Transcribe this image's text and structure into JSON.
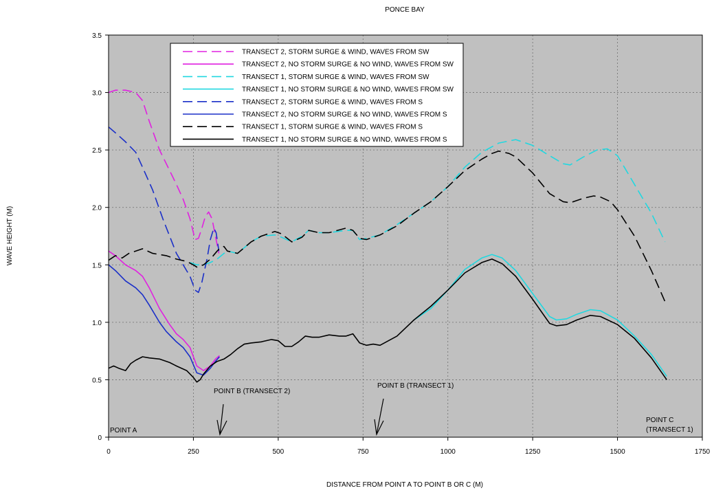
{
  "chart_data": {
    "type": "line",
    "title": "PONCE BAY",
    "xlabel": "DISTANCE FROM POINT A TO POINT B OR C (M)",
    "ylabel": "WAVE HEIGHT (M)",
    "xlim": [
      0,
      1750
    ],
    "ylim": [
      0,
      3.5
    ],
    "x_ticks": [
      0,
      250,
      500,
      750,
      1000,
      1250,
      1500,
      1750
    ],
    "y_ticks": [
      0,
      0.5,
      1.0,
      1.5,
      2.0,
      2.5,
      3.0,
      3.5
    ],
    "x_tick_labels": [
      "0",
      "250",
      "500",
      "750",
      "1000",
      "1250",
      "1500",
      "1750"
    ],
    "y_tick_labels": [
      "0",
      "0.5",
      "1.0",
      "1.5",
      "2.0",
      "2.5",
      "3.0",
      "3.5"
    ],
    "grid": true,
    "legend_position": "top-left",
    "series": [
      {
        "name": "TRANSECT 2, STORM SURGE & WIND, WAVES FROM SW",
        "color": "#e020e0",
        "style": "dashed",
        "x": [
          0,
          20,
          50,
          80,
          100,
          120,
          150,
          180,
          200,
          220,
          240,
          255,
          265,
          275,
          285,
          295,
          305,
          315,
          325
        ],
        "y": [
          3.0,
          3.02,
          3.02,
          3.0,
          2.93,
          2.75,
          2.5,
          2.32,
          2.2,
          2.07,
          1.9,
          1.72,
          1.73,
          1.82,
          1.92,
          1.96,
          1.9,
          1.75,
          1.6
        ]
      },
      {
        "name": "TRANSECT 2, NO STORM SURGE & NO WIND, WAVES FROM SW",
        "color": "#e020e0",
        "style": "solid",
        "x": [
          0,
          20,
          50,
          80,
          100,
          120,
          150,
          180,
          200,
          220,
          240,
          260,
          280,
          300,
          315,
          327
        ],
        "y": [
          1.62,
          1.58,
          1.5,
          1.45,
          1.4,
          1.3,
          1.12,
          0.98,
          0.9,
          0.85,
          0.78,
          0.62,
          0.58,
          0.62,
          0.68,
          0.71
        ]
      },
      {
        "name": "TRANSECT 1, STORM SURGE & WIND, WAVES FROM SW",
        "color": "#20d8e0",
        "style": "dashed",
        "x": [
          240,
          260,
          280,
          300,
          320,
          340,
          350,
          380,
          420,
          450,
          490,
          510,
          540,
          570,
          590,
          620,
          650,
          700,
          720,
          740,
          760,
          800,
          850,
          900,
          950,
          1000,
          1050,
          1100,
          1150,
          1200,
          1250,
          1300,
          1340,
          1360,
          1400,
          1440,
          1470,
          1500,
          1550,
          1600,
          1640
        ],
        "y": [
          1.52,
          1.5,
          1.5,
          1.52,
          1.55,
          1.6,
          1.62,
          1.6,
          1.7,
          1.75,
          1.76,
          1.74,
          1.7,
          1.75,
          1.8,
          1.78,
          1.78,
          1.8,
          1.8,
          1.72,
          1.73,
          1.76,
          1.85,
          1.95,
          2.05,
          2.18,
          2.35,
          2.48,
          2.56,
          2.59,
          2.54,
          2.45,
          2.38,
          2.37,
          2.44,
          2.5,
          2.51,
          2.45,
          2.2,
          1.95,
          1.7
        ]
      },
      {
        "name": "TRANSECT 1, NO STORM SURGE & NO WIND, WAVES FROM SW",
        "color": "#20d8e0",
        "style": "solid",
        "x": [
          900,
          950,
          1000,
          1050,
          1100,
          1130,
          1160,
          1200,
          1250,
          1300,
          1320,
          1350,
          1380,
          1420,
          1450,
          1500,
          1550,
          1600,
          1645
        ],
        "y": [
          1.02,
          1.12,
          1.28,
          1.46,
          1.56,
          1.59,
          1.56,
          1.45,
          1.25,
          1.05,
          1.02,
          1.03,
          1.07,
          1.11,
          1.1,
          1.02,
          0.88,
          0.72,
          0.53
        ]
      },
      {
        "name": "TRANSECT 2, STORM SURGE & WIND, WAVES FROM S",
        "color": "#1a2fc8",
        "style": "dashed",
        "x": [
          0,
          20,
          50,
          80,
          100,
          130,
          160,
          200,
          220,
          240,
          255,
          265,
          275,
          290,
          300,
          310,
          317,
          325
        ],
        "y": [
          2.7,
          2.65,
          2.57,
          2.48,
          2.35,
          2.15,
          1.9,
          1.6,
          1.5,
          1.4,
          1.28,
          1.26,
          1.35,
          1.55,
          1.72,
          1.82,
          1.78,
          1.62
        ]
      },
      {
        "name": "TRANSECT 2, NO STORM SURGE & NO WIND, WAVES FROM S",
        "color": "#1a2fc8",
        "style": "solid",
        "x": [
          0,
          20,
          50,
          80,
          100,
          120,
          150,
          170,
          200,
          220,
          240,
          260,
          280,
          300,
          315,
          327
        ],
        "y": [
          1.5,
          1.45,
          1.36,
          1.3,
          1.24,
          1.15,
          1.0,
          0.92,
          0.83,
          0.78,
          0.7,
          0.56,
          0.54,
          0.6,
          0.66,
          0.7
        ]
      },
      {
        "name": "TRANSECT 1, STORM SURGE & WIND, WAVES FROM S",
        "color": "#000000",
        "style": "dashed",
        "x": [
          0,
          20,
          40,
          60,
          80,
          100,
          130,
          170,
          200,
          230,
          250,
          260,
          280,
          300,
          320,
          330,
          340,
          350,
          380,
          420,
          450,
          490,
          510,
          540,
          570,
          590,
          620,
          650,
          700,
          720,
          740,
          760,
          800,
          850,
          900,
          950,
          1000,
          1050,
          1100,
          1130,
          1150,
          1180,
          1200,
          1250,
          1300,
          1340,
          1360,
          1400,
          1430,
          1450,
          1480,
          1500,
          1550,
          1600,
          1640
        ],
        "y": [
          1.54,
          1.58,
          1.56,
          1.6,
          1.62,
          1.64,
          1.6,
          1.58,
          1.55,
          1.53,
          1.5,
          1.48,
          1.5,
          1.55,
          1.62,
          1.65,
          1.66,
          1.62,
          1.6,
          1.7,
          1.75,
          1.79,
          1.77,
          1.7,
          1.74,
          1.8,
          1.78,
          1.78,
          1.82,
          1.8,
          1.73,
          1.72,
          1.76,
          1.84,
          1.95,
          2.05,
          2.18,
          2.32,
          2.42,
          2.47,
          2.49,
          2.47,
          2.44,
          2.3,
          2.12,
          2.05,
          2.04,
          2.08,
          2.1,
          2.09,
          2.05,
          1.98,
          1.75,
          1.45,
          1.18
        ]
      },
      {
        "name": "TRANSECT 1, NO STORM SURGE & NO WIND, WAVES FROM S",
        "color": "#000000",
        "style": "solid",
        "x": [
          0,
          15,
          30,
          50,
          65,
          80,
          100,
          120,
          150,
          180,
          200,
          230,
          250,
          260,
          270,
          280,
          300,
          320,
          340,
          360,
          380,
          400,
          420,
          450,
          480,
          500,
          520,
          540,
          560,
          580,
          600,
          620,
          650,
          680,
          700,
          720,
          740,
          760,
          780,
          800,
          850,
          900,
          950,
          1000,
          1050,
          1100,
          1130,
          1160,
          1200,
          1250,
          1300,
          1320,
          1350,
          1380,
          1420,
          1450,
          1500,
          1550,
          1600,
          1645
        ],
        "y": [
          0.6,
          0.62,
          0.6,
          0.58,
          0.64,
          0.67,
          0.7,
          0.69,
          0.68,
          0.65,
          0.62,
          0.58,
          0.52,
          0.48,
          0.5,
          0.55,
          0.62,
          0.66,
          0.68,
          0.72,
          0.77,
          0.81,
          0.82,
          0.83,
          0.85,
          0.84,
          0.79,
          0.79,
          0.83,
          0.88,
          0.87,
          0.87,
          0.89,
          0.88,
          0.88,
          0.9,
          0.82,
          0.8,
          0.81,
          0.8,
          0.88,
          1.02,
          1.14,
          1.28,
          1.43,
          1.52,
          1.55,
          1.51,
          1.4,
          1.2,
          0.99,
          0.97,
          0.98,
          1.02,
          1.06,
          1.05,
          0.98,
          0.86,
          0.69,
          0.5
        ]
      }
    ],
    "annotations": [
      {
        "text": "POINT A"
      },
      {
        "text": "POINT B (TRANSECT 2)",
        "x": 330
      },
      {
        "text": "POINT B (TRANSECT 1)",
        "x": 790
      },
      {
        "text": "POINT C",
        "text2": "(TRANSECT 1)"
      }
    ]
  }
}
